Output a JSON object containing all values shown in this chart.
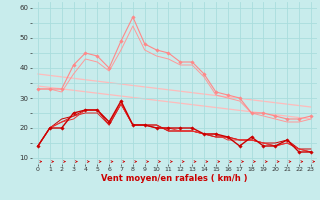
{
  "background_color": "#c8ecec",
  "grid_color": "#aadddd",
  "xlabel": "Vent moyen/en rafales ( km/h )",
  "xlabel_color": "#cc0000",
  "xlabel_fontsize": 6.0,
  "ytick_labels": [
    "10",
    "",
    "20",
    "",
    "30",
    "",
    "40",
    "",
    "50",
    "",
    "60"
  ],
  "ytick_vals": [
    10,
    15,
    20,
    25,
    30,
    35,
    40,
    45,
    50,
    55,
    60
  ],
  "xtick_vals": [
    0,
    1,
    2,
    3,
    4,
    5,
    6,
    7,
    8,
    9,
    10,
    11,
    12,
    13,
    14,
    15,
    16,
    17,
    18,
    19,
    20,
    21,
    22,
    23
  ],
  "ylim": [
    8,
    62
  ],
  "xlim": [
    -0.5,
    23.5
  ],
  "lines": [
    {
      "x": [
        0,
        1,
        2,
        3,
        4,
        5,
        6,
        7,
        8,
        9,
        10,
        11,
        12,
        13,
        14,
        15,
        16,
        17,
        18,
        19,
        20,
        21,
        22,
        23
      ],
      "y": [
        33,
        33,
        33,
        41,
        45,
        44,
        40,
        49,
        57,
        48,
        46,
        45,
        42,
        42,
        38,
        32,
        31,
        30,
        25,
        25,
        24,
        23,
        23,
        24
      ],
      "color": "#ff8888",
      "lw": 0.8,
      "marker": "D",
      "ms": 1.8,
      "zorder": 3
    },
    {
      "x": [
        0,
        1,
        2,
        3,
        4,
        5,
        6,
        7,
        8,
        9,
        10,
        11,
        12,
        13,
        14,
        15,
        16,
        17,
        18,
        19,
        20,
        21,
        22,
        23
      ],
      "y": [
        33,
        33,
        32,
        38,
        43,
        42,
        39,
        46,
        54,
        46,
        44,
        43,
        41,
        41,
        37,
        31,
        30,
        29,
        25,
        24,
        23,
        22,
        22,
        23
      ],
      "color": "#ff9999",
      "lw": 0.7,
      "marker": null,
      "ms": 0,
      "zorder": 2
    },
    {
      "x": [
        0,
        23
      ],
      "y": [
        34,
        23
      ],
      "color": "#ffbbbb",
      "lw": 0.9,
      "marker": null,
      "ms": 0,
      "zorder": 1
    },
    {
      "x": [
        0,
        23
      ],
      "y": [
        38,
        27
      ],
      "color": "#ffbbbb",
      "lw": 0.9,
      "marker": null,
      "ms": 0,
      "zorder": 1
    },
    {
      "x": [
        0,
        1,
        2,
        3,
        4,
        5,
        6,
        7,
        8,
        9,
        10,
        11,
        12,
        13,
        14,
        15,
        16,
        17,
        18,
        19,
        20,
        21,
        22,
        23
      ],
      "y": [
        14,
        20,
        20,
        25,
        26,
        26,
        22,
        29,
        21,
        21,
        20,
        20,
        20,
        20,
        18,
        18,
        17,
        14,
        17,
        14,
        14,
        16,
        12,
        12
      ],
      "color": "#cc0000",
      "lw": 1.0,
      "marker": "D",
      "ms": 1.8,
      "zorder": 5
    },
    {
      "x": [
        0,
        1,
        2,
        3,
        4,
        5,
        6,
        7,
        8,
        9,
        10,
        11,
        12,
        13,
        14,
        15,
        16,
        17,
        18,
        19,
        20,
        21,
        22,
        23
      ],
      "y": [
        14,
        20,
        23,
        24,
        26,
        26,
        21,
        28,
        21,
        21,
        21,
        19,
        19,
        19,
        18,
        17,
        17,
        16,
        16,
        15,
        15,
        16,
        13,
        13
      ],
      "color": "#cc0000",
      "lw": 0.7,
      "marker": null,
      "ms": 0,
      "zorder": 4
    },
    {
      "x": [
        0,
        1,
        2,
        3,
        4,
        5,
        6,
        7,
        8,
        9,
        10,
        11,
        12,
        13,
        14,
        15,
        16,
        17,
        18,
        19,
        20,
        21,
        22,
        23
      ],
      "y": [
        14,
        20,
        22,
        24,
        25,
        25,
        21,
        28,
        21,
        21,
        21,
        19,
        19,
        19,
        18,
        17,
        17,
        16,
        16,
        15,
        14,
        15,
        13,
        12
      ],
      "color": "#dd2222",
      "lw": 0.7,
      "marker": null,
      "ms": 0,
      "zorder": 4
    },
    {
      "x": [
        0,
        1,
        2,
        3,
        4,
        5,
        6,
        7,
        8,
        9,
        10,
        11,
        12,
        13,
        14,
        15,
        16,
        17,
        18,
        19,
        20,
        21,
        22,
        23
      ],
      "y": [
        14,
        20,
        22,
        23,
        26,
        26,
        22,
        28,
        21,
        21,
        20,
        20,
        19,
        19,
        18,
        18,
        16,
        16,
        16,
        15,
        14,
        15,
        13,
        12
      ],
      "color": "#ee3333",
      "lw": 0.7,
      "marker": null,
      "ms": 0,
      "zorder": 4
    }
  ],
  "arrow_color": "#cc0000",
  "tick_color": "#333333",
  "tick_fontsize": 4.5,
  "ytick_fontsize": 5.0
}
